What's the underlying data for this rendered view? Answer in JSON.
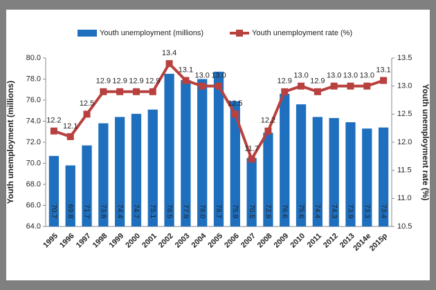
{
  "chart_data": {
    "type": "bar",
    "categories": [
      "1995",
      "1996",
      "1997",
      "1998",
      "1999",
      "2000",
      "2001",
      "2002",
      "2003",
      "2004",
      "2005",
      "2006",
      "2007",
      "2008",
      "2009",
      "2010",
      "2011",
      "2012",
      "2013",
      "2014e",
      "2015p"
    ],
    "y_label": "Youth unemployment (millions)",
    "y2_label": "Youth unemployment rate (%)",
    "series": [
      {
        "name": "Youth unemployment (millions)",
        "type": "bar",
        "color": "#1f6fbf",
        "values": [
          70.7,
          69.8,
          71.7,
          73.8,
          74.4,
          74.7,
          75.1,
          78.5,
          77.9,
          78.0,
          78.7,
          75.9,
          70.5,
          72.9,
          76.6,
          75.6,
          74.4,
          74.3,
          73.9,
          73.3,
          73.4
        ],
        "value_labels": [
          "70.7",
          "69.8",
          "71.7",
          "73.8",
          "74.4",
          "74.7",
          "75.1",
          "78.5",
          "77.9",
          "78.0",
          "78.7",
          "75.9",
          "70.5",
          "72.9",
          "76.6",
          "75.6",
          "74.4",
          "74.3",
          "73.9",
          "73.3",
          "73.4"
        ]
      },
      {
        "name": "Youth unemployment rate (%)",
        "type": "line",
        "axis": "y2",
        "color": "#b8413f",
        "values": [
          12.2,
          12.1,
          12.5,
          12.9,
          12.9,
          12.9,
          12.9,
          13.4,
          13.1,
          13.0,
          13.0,
          12.5,
          11.7,
          12.2,
          12.9,
          13.0,
          12.9,
          13.0,
          13.0,
          13.0,
          13.1
        ],
        "value_labels": [
          "12.2",
          "12.1",
          "12.5",
          "12.9",
          "12.9",
          "12.9",
          "12.9",
          "13.4",
          "13.1",
          "13.0",
          "13.0",
          "12.5",
          "11.7",
          "12.2",
          "12.9",
          "13.0",
          "12.9",
          "13.0",
          "13.0",
          "13.0",
          "13.1"
        ]
      }
    ],
    "ylim": [
      64,
      80
    ],
    "yticks": [
      {
        "value": 64,
        "label": "64.0"
      },
      {
        "value": 66,
        "label": "66.0"
      },
      {
        "value": 68,
        "label": "68.0"
      },
      {
        "value": 70,
        "label": "70.0"
      },
      {
        "value": 72,
        "label": "72.0"
      },
      {
        "value": 74,
        "label": "74.0"
      },
      {
        "value": 76,
        "label": "76.0"
      },
      {
        "value": 78,
        "label": "78.0"
      },
      {
        "value": 80,
        "label": "80.0"
      }
    ],
    "y2lim": [
      10.5,
      13.5
    ],
    "y2ticks": [
      10.5,
      {
        "value": 11,
        "label": "11.0"
      },
      11.5,
      {
        "value": 12,
        "label": "12.0"
      },
      12.5,
      {
        "value": 13,
        "label": "13.0"
      },
      13.5
    ],
    "legend": "top"
  }
}
